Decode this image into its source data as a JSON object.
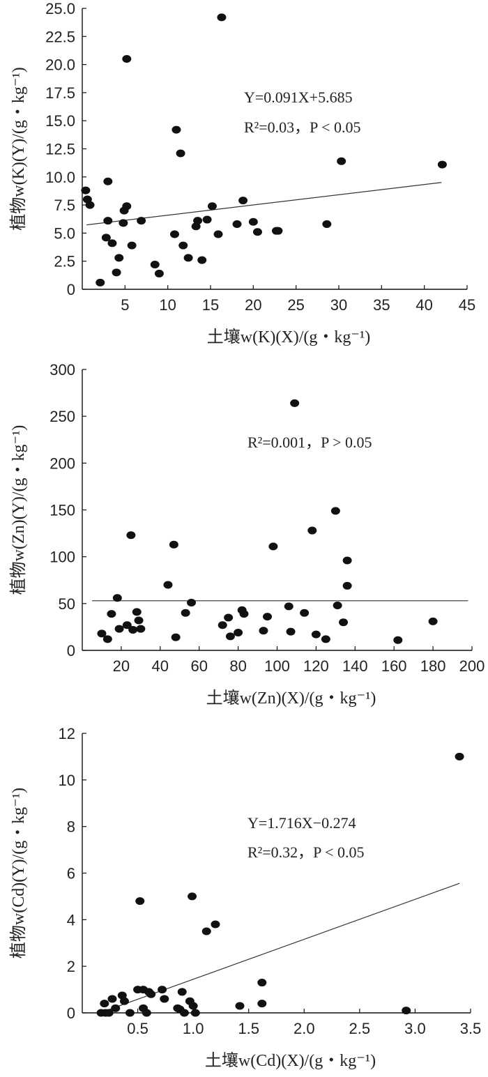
{
  "chart_data": [
    {
      "type": "scatter",
      "xlabel": "土壤w(K)(X)/(g・kg⁻¹)",
      "ylabel": "植物w(K)(Y)/(g・kg⁻¹)",
      "xlim": [
        0,
        45
      ],
      "ylim": [
        0,
        25
      ],
      "x_ticks": [
        "5",
        "10",
        "15",
        "20",
        "25",
        "30",
        "35",
        "40",
        "45"
      ],
      "y_ticks": [
        "0",
        "2.5",
        "5.0",
        "7.5",
        "10.0",
        "12.5",
        "15.0",
        "17.5",
        "20.0",
        "22.5",
        "25.0"
      ],
      "annotations": [
        "Y=0.091X+5.685",
        "R²=0.03，P < 0.05"
      ],
      "trendline": {
        "slope": 0.091,
        "intercept": 5.685,
        "x_range": [
          0.5,
          42
        ]
      },
      "points": [
        [
          0.4,
          8.8
        ],
        [
          0.6,
          8.0
        ],
        [
          0.9,
          7.5
        ],
        [
          2.1,
          0.6
        ],
        [
          2.8,
          4.6
        ],
        [
          3.0,
          9.6
        ],
        [
          3.0,
          6.1
        ],
        [
          3.5,
          4.1
        ],
        [
          4.0,
          1.5
        ],
        [
          4.3,
          2.8
        ],
        [
          4.8,
          5.9
        ],
        [
          4.9,
          7.0
        ],
        [
          5.2,
          7.4
        ],
        [
          5.2,
          20.5
        ],
        [
          5.8,
          3.9
        ],
        [
          6.9,
          6.1
        ],
        [
          8.5,
          2.2
        ],
        [
          9.0,
          1.4
        ],
        [
          10.8,
          4.9
        ],
        [
          11.0,
          14.2
        ],
        [
          11.5,
          12.1
        ],
        [
          11.8,
          3.9
        ],
        [
          12.4,
          2.8
        ],
        [
          13.3,
          5.6
        ],
        [
          13.5,
          6.1
        ],
        [
          14.0,
          2.6
        ],
        [
          14.6,
          6.2
        ],
        [
          15.2,
          7.4
        ],
        [
          15.9,
          4.9
        ],
        [
          16.3,
          24.2
        ],
        [
          18.1,
          5.8
        ],
        [
          18.8,
          7.9
        ],
        [
          20.0,
          6.0
        ],
        [
          20.5,
          5.1
        ],
        [
          22.7,
          5.2
        ],
        [
          22.9,
          5.2
        ],
        [
          28.6,
          5.8
        ],
        [
          30.3,
          11.4
        ],
        [
          42.1,
          11.1
        ]
      ]
    },
    {
      "type": "scatter",
      "xlabel": "土壤w(Zn)(X)/(g・kg⁻¹)",
      "ylabel": "植物w(Zn)(Y)/(g・kg⁻¹)",
      "xlim": [
        0,
        200
      ],
      "ylim": [
        0,
        300
      ],
      "x_ticks": [
        "20",
        "40",
        "60",
        "80",
        "100",
        "120",
        "140",
        "160",
        "180",
        "200"
      ],
      "y_ticks": [
        "0",
        "50",
        "100",
        "150",
        "200",
        "250",
        "300"
      ],
      "annotations": [
        "R²=0.001，P > 0.05"
      ],
      "trendline": {
        "slope": 0,
        "intercept": 53,
        "x_range": [
          5,
          198
        ]
      },
      "points": [
        [
          10,
          18
        ],
        [
          13,
          12
        ],
        [
          15,
          39
        ],
        [
          18,
          56
        ],
        [
          19,
          23
        ],
        [
          23,
          27
        ],
        [
          25,
          123
        ],
        [
          26,
          22
        ],
        [
          28,
          41
        ],
        [
          29,
          32
        ],
        [
          30,
          23
        ],
        [
          44,
          70
        ],
        [
          47,
          113
        ],
        [
          48,
          14
        ],
        [
          53,
          40
        ],
        [
          56,
          51
        ],
        [
          72,
          27
        ],
        [
          75,
          35
        ],
        [
          76,
          15
        ],
        [
          80,
          19
        ],
        [
          82,
          43
        ],
        [
          83,
          39
        ],
        [
          93,
          21
        ],
        [
          95,
          36
        ],
        [
          98,
          111
        ],
        [
          106,
          47
        ],
        [
          107,
          20
        ],
        [
          109,
          264
        ],
        [
          114,
          40
        ],
        [
          118,
          128
        ],
        [
          120,
          17
        ],
        [
          125,
          12
        ],
        [
          130,
          149
        ],
        [
          131,
          48
        ],
        [
          134,
          30
        ],
        [
          136,
          96
        ],
        [
          136,
          69
        ],
        [
          162,
          11
        ],
        [
          180,
          31
        ]
      ]
    },
    {
      "type": "scatter",
      "xlabel": "土壤w(Cd)(X)/(g・kg⁻¹)",
      "ylabel": "植物w(Cd)(Y)/(g・kg⁻¹)",
      "xlim": [
        0,
        3.5
      ],
      "ylim": [
        0,
        12
      ],
      "x_ticks": [
        "0.5",
        "1.0",
        "1.5",
        "2.0",
        "2.5",
        "3.0",
        "3.5"
      ],
      "y_ticks": [
        "0",
        "2",
        "4",
        "6",
        "8",
        "10",
        "12"
      ],
      "annotations": [
        "Y=1.716X−0.274",
        "R²=0.32，P < 0.05"
      ],
      "trendline": {
        "slope": 1.716,
        "intercept": -0.274,
        "x_range": [
          0.16,
          3.4
        ]
      },
      "points": [
        [
          0.17,
          0.0
        ],
        [
          0.2,
          0.4
        ],
        [
          0.21,
          0.0
        ],
        [
          0.24,
          0.0
        ],
        [
          0.27,
          0.6
        ],
        [
          0.3,
          0.2
        ],
        [
          0.36,
          0.75
        ],
        [
          0.38,
          0.5
        ],
        [
          0.43,
          0.0
        ],
        [
          0.5,
          1.0
        ],
        [
          0.52,
          4.8
        ],
        [
          0.55,
          1.0
        ],
        [
          0.55,
          0.2
        ],
        [
          0.58,
          0.0
        ],
        [
          0.6,
          0.9
        ],
        [
          0.62,
          0.8
        ],
        [
          0.72,
          1.0
        ],
        [
          0.74,
          0.6
        ],
        [
          0.86,
          0.2
        ],
        [
          0.88,
          0.15
        ],
        [
          0.9,
          0.9
        ],
        [
          0.92,
          0.0
        ],
        [
          0.97,
          0.5
        ],
        [
          0.99,
          5.0
        ],
        [
          1.0,
          0.3
        ],
        [
          1.02,
          0.0
        ],
        [
          1.12,
          3.5
        ],
        [
          1.2,
          3.8
        ],
        [
          1.42,
          0.3
        ],
        [
          1.62,
          1.3
        ],
        [
          1.62,
          0.4
        ],
        [
          2.92,
          0.1
        ],
        [
          3.4,
          11.0
        ]
      ]
    }
  ]
}
